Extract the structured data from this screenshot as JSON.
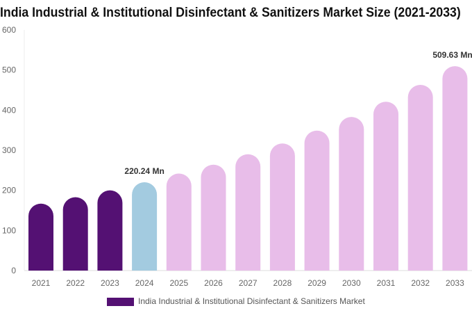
{
  "chart_data": {
    "type": "bar",
    "title": "India Industrial & Institutional Disinfectant & Sanitizers Market Size (2021-2033)",
    "categories": [
      "2021",
      "2022",
      "2023",
      "2024",
      "2025",
      "2026",
      "2027",
      "2028",
      "2029",
      "2030",
      "2031",
      "2032",
      "2033"
    ],
    "series": [
      {
        "name": "India Industrial & Institutional Disinfectant & Sanitizers Market",
        "values": [
          167,
          183,
          200,
          220.24,
          242,
          264,
          290,
          317,
          349,
          383,
          421,
          463,
          509.63
        ]
      }
    ],
    "data_labels": {
      "3": "220.24 Mn",
      "12": "509.63 Mn"
    },
    "ylim": [
      0,
      600
    ],
    "yticks": [
      0,
      100,
      200,
      300,
      400,
      500,
      600
    ],
    "grid": false,
    "legend": "bottom",
    "colors": {
      "historical": "#541173",
      "base_year": "#a3cbe0",
      "forecast": "#e8bde9"
    }
  }
}
